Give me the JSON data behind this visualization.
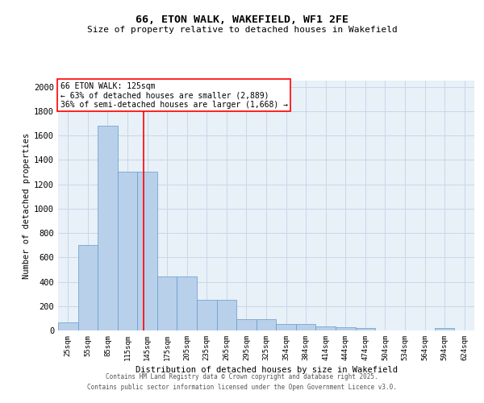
{
  "title1": "66, ETON WALK, WAKEFIELD, WF1 2FE",
  "title2": "Size of property relative to detached houses in Wakefield",
  "xlabel": "Distribution of detached houses by size in Wakefield",
  "ylabel": "Number of detached properties",
  "categories": [
    "25sqm",
    "55sqm",
    "85sqm",
    "115sqm",
    "145sqm",
    "175sqm",
    "205sqm",
    "235sqm",
    "265sqm",
    "295sqm",
    "325sqm",
    "354sqm",
    "384sqm",
    "414sqm",
    "444sqm",
    "474sqm",
    "504sqm",
    "534sqm",
    "564sqm",
    "594sqm",
    "624sqm"
  ],
  "values": [
    65,
    700,
    1680,
    1300,
    1300,
    445,
    445,
    250,
    250,
    95,
    90,
    50,
    50,
    30,
    25,
    20,
    0,
    0,
    0,
    20,
    0
  ],
  "bar_color": "#b8d0ea",
  "bar_edge_color": "#6699cc",
  "vline_color": "red",
  "vline_pos": 3.83,
  "annotation_text": "66 ETON WALK: 125sqm\n← 63% of detached houses are smaller (2,889)\n36% of semi-detached houses are larger (1,668) →",
  "ylim": [
    0,
    2050
  ],
  "yticks": [
    0,
    200,
    400,
    600,
    800,
    1000,
    1200,
    1400,
    1600,
    1800,
    2000
  ],
  "grid_color": "#c8d8e8",
  "bg_color": "#e8f0f8",
  "footer1": "Contains HM Land Registry data © Crown copyright and database right 2025.",
  "footer2": "Contains public sector information licensed under the Open Government Licence v3.0."
}
